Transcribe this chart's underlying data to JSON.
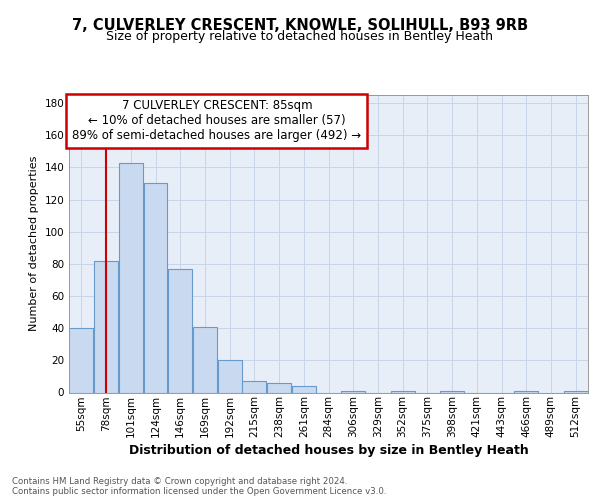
{
  "title1": "7, CULVERLEY CRESCENT, KNOWLE, SOLIHULL, B93 9RB",
  "title2": "Size of property relative to detached houses in Bentley Heath",
  "xlabel": "Distribution of detached houses by size in Bentley Heath",
  "ylabel": "Number of detached properties",
  "bin_labels": [
    "55sqm",
    "78sqm",
    "101sqm",
    "124sqm",
    "146sqm",
    "169sqm",
    "192sqm",
    "215sqm",
    "238sqm",
    "261sqm",
    "284sqm",
    "306sqm",
    "329sqm",
    "352sqm",
    "375sqm",
    "398sqm",
    "421sqm",
    "443sqm",
    "466sqm",
    "489sqm",
    "512sqm"
  ],
  "bar_values": [
    40,
    82,
    143,
    130,
    77,
    41,
    20,
    7,
    6,
    4,
    0,
    1,
    0,
    1,
    0,
    1,
    0,
    0,
    1,
    0,
    1
  ],
  "bar_color": "#c9daf0",
  "bar_edge_color": "#6699cc",
  "grid_color": "#c8d4e8",
  "background_color": "#e8eef8",
  "red_line_x": 1.0,
  "annotation_text_line1": "7 CULVERLEY CRESCENT: 85sqm",
  "annotation_text_line2": "← 10% of detached houses are smaller (57)",
  "annotation_text_line3": "89% of semi-detached houses are larger (492) →",
  "red_box_color": "#cc0000",
  "footnote": "Contains HM Land Registry data © Crown copyright and database right 2024.\nContains public sector information licensed under the Open Government Licence v3.0.",
  "ylim": [
    0,
    185
  ],
  "yticks": [
    0,
    20,
    40,
    60,
    80,
    100,
    120,
    140,
    160,
    180
  ],
  "title1_fontsize": 10.5,
  "title2_fontsize": 9,
  "ylabel_fontsize": 8,
  "xlabel_fontsize": 9,
  "tick_fontsize": 7.5,
  "annot_fontsize": 8.5
}
